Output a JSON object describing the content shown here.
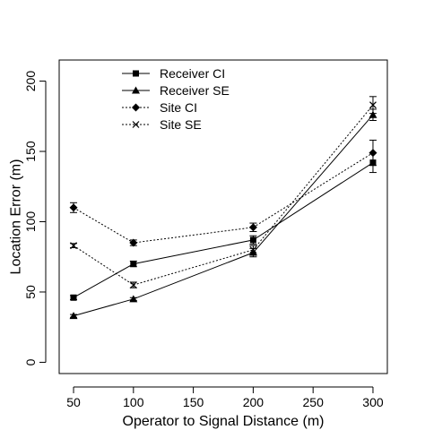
{
  "chart_data": {
    "type": "line",
    "title": "",
    "xlabel": "Operator to Signal Distance (m)",
    "ylabel": "Location Error (m)",
    "xlim": [
      38,
      312
    ],
    "ylim": [
      -8,
      215
    ],
    "xticks": [
      50,
      100,
      150,
      200,
      250,
      300
    ],
    "yticks": [
      0,
      50,
      100,
      150,
      200
    ],
    "grid": false,
    "legend_position": "top-left",
    "x": [
      50,
      100,
      200,
      300
    ],
    "series": [
      {
        "name": "Receiver CI",
        "marker": "square",
        "line": "solid",
        "values": [
          46,
          70,
          87,
          142
        ],
        "error": [
          1.5,
          2,
          3,
          7
        ]
      },
      {
        "name": "Receiver SE",
        "marker": "triangle",
        "line": "solid",
        "values": [
          33,
          45,
          78,
          176
        ],
        "error": [
          1,
          1,
          3,
          4
        ]
      },
      {
        "name": "Site CI",
        "marker": "diamond",
        "line": "dotted",
        "values": [
          110,
          85,
          96,
          149
        ],
        "error": [
          3.5,
          2,
          3,
          9
        ]
      },
      {
        "name": "Site SE",
        "marker": "x",
        "line": "dotted",
        "values": [
          83,
          55,
          80,
          183
        ],
        "error": [
          1.5,
          2,
          3,
          6
        ]
      }
    ]
  }
}
